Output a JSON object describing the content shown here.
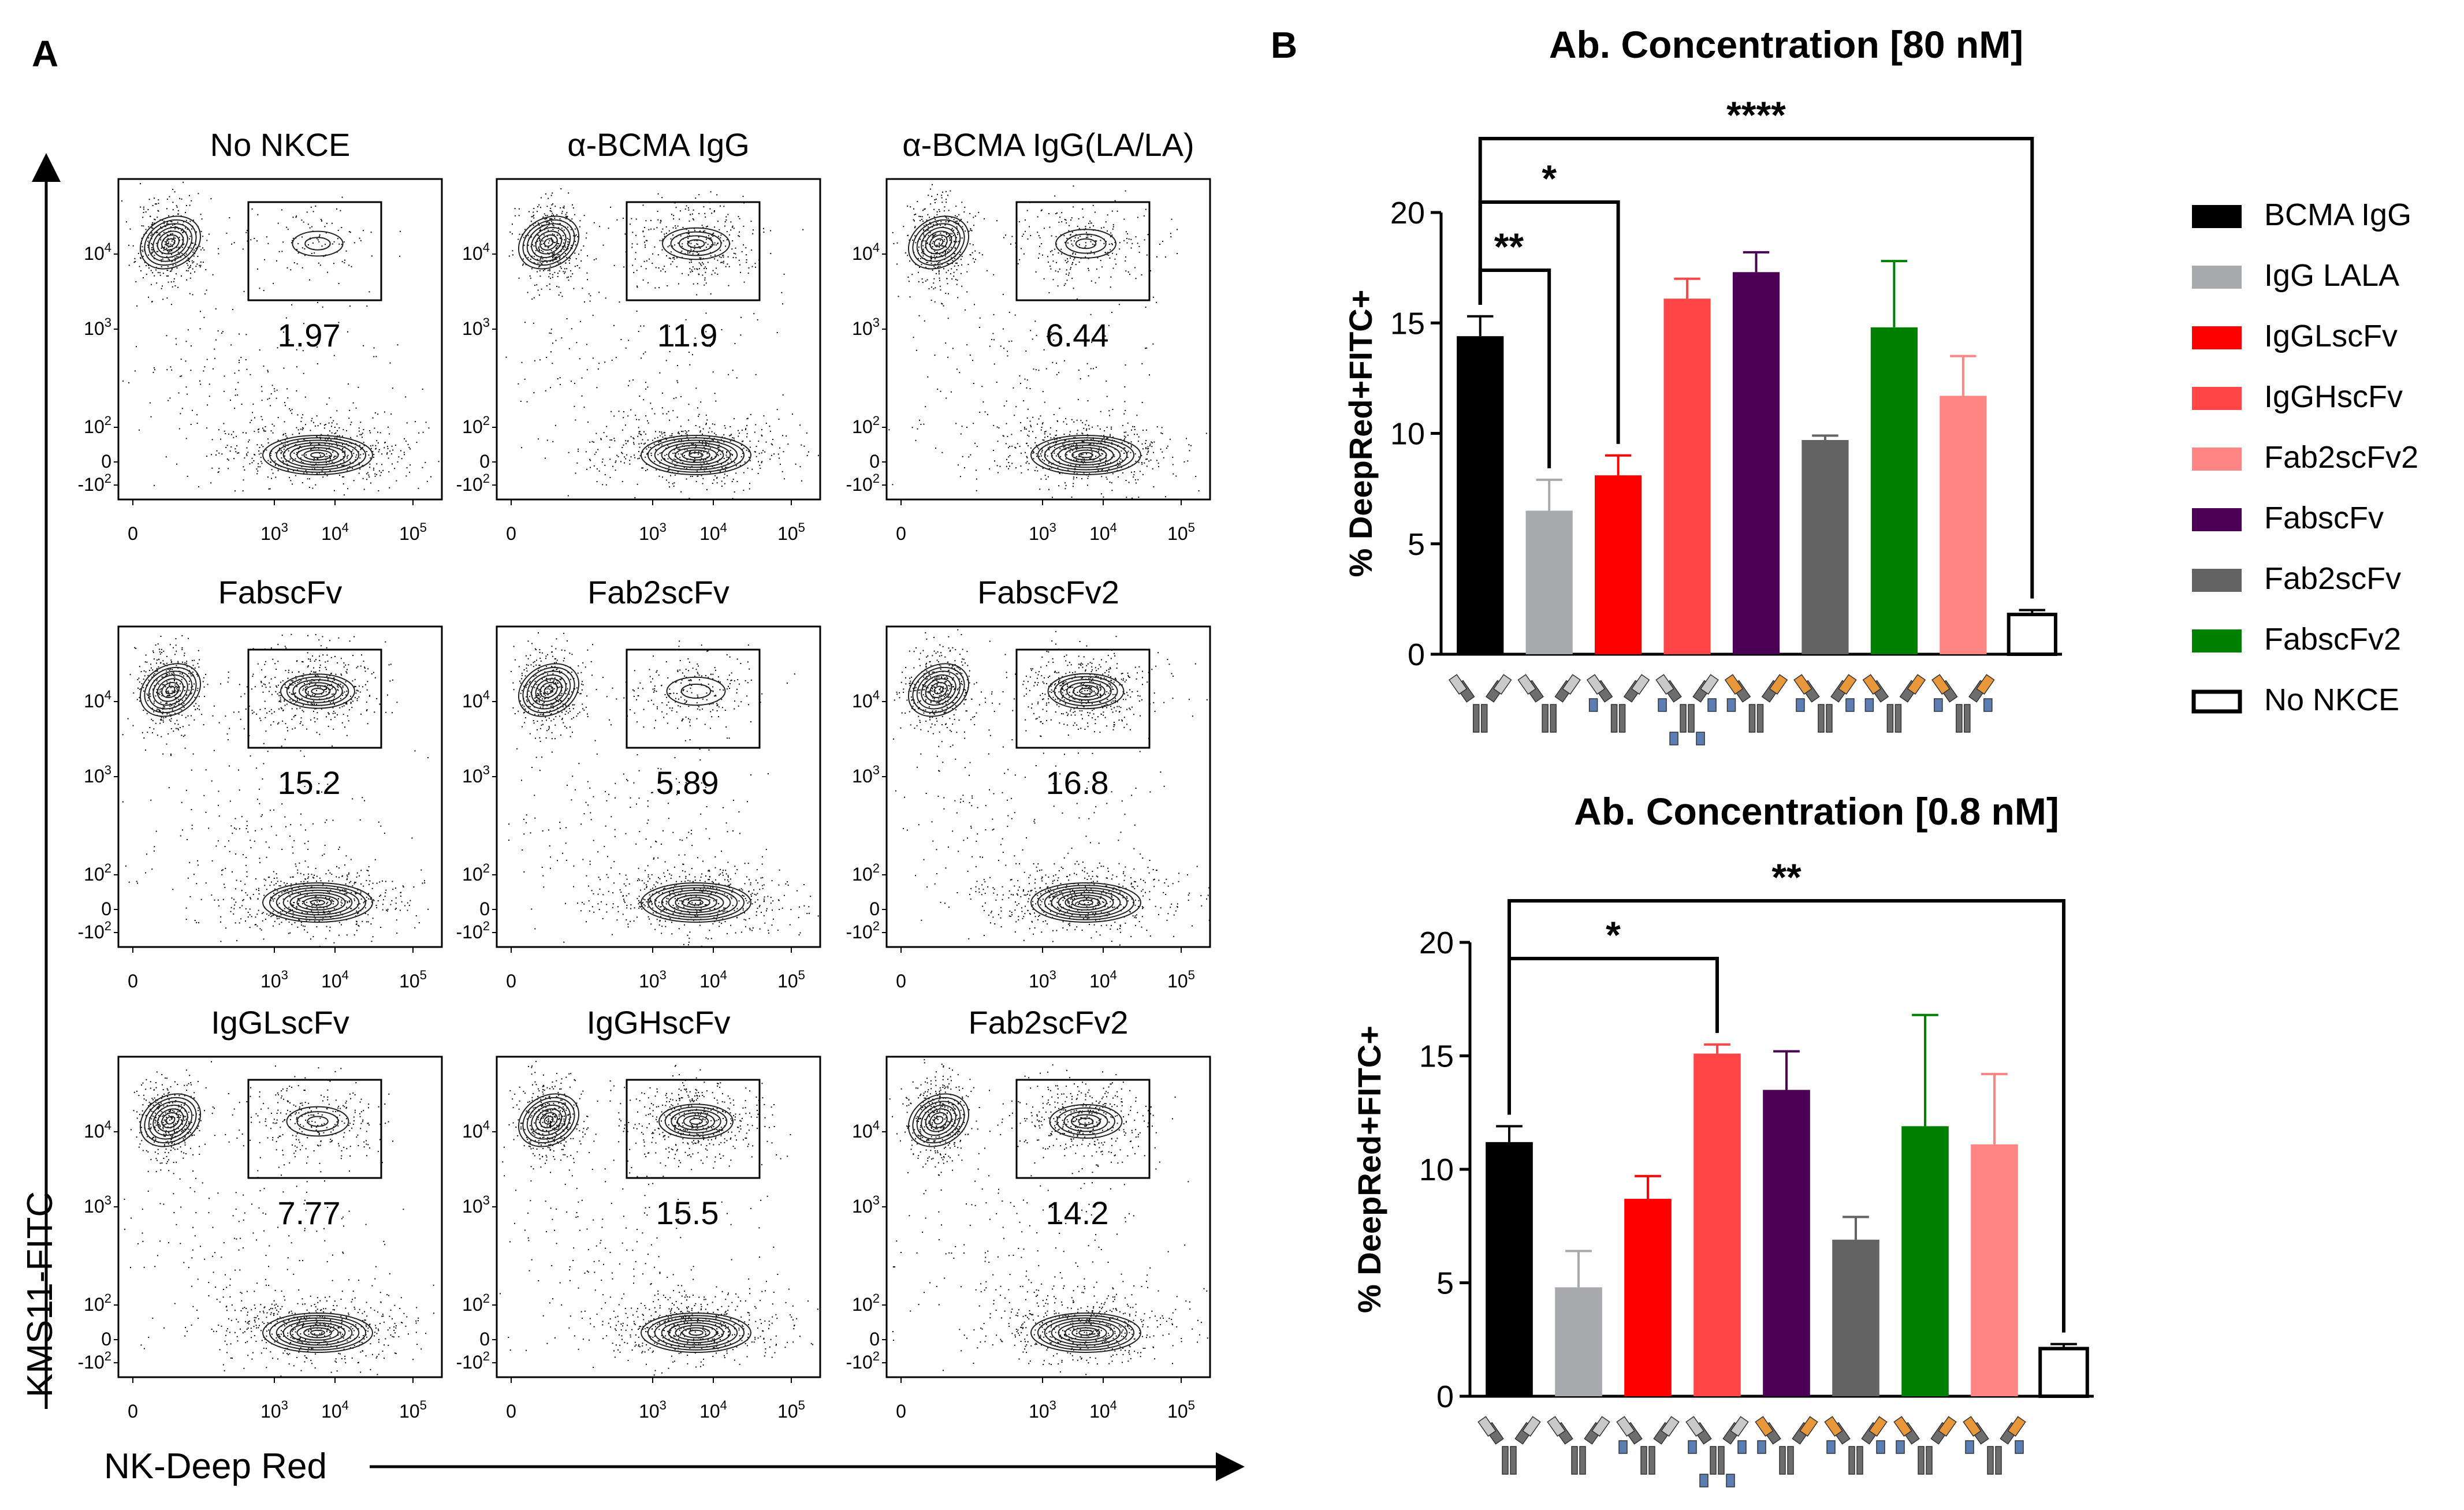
{
  "panel_a": {
    "letter": "A",
    "y_axis_label": "KMS11-FITC",
    "x_axis_label": "NK-Deep Red",
    "y_ticks": [
      {
        "base": "10",
        "exp": "4"
      },
      {
        "base": "10",
        "exp": "3"
      },
      {
        "base": "10",
        "exp": "2"
      },
      {
        "base": "0",
        "exp": ""
      },
      {
        "base": "-10",
        "exp": "2"
      }
    ],
    "x_ticks": [
      {
        "base": "0",
        "exp": ""
      },
      {
        "base": "10",
        "exp": "3"
      },
      {
        "base": "10",
        "exp": "4"
      },
      {
        "base": "10",
        "exp": "5"
      }
    ],
    "plots": [
      {
        "title": "No NKCE",
        "gate_value": "1.97",
        "gated_fraction": 0.12
      },
      {
        "title": "α-BCMA IgG",
        "gate_value": "11.9",
        "gated_fraction": 0.6
      },
      {
        "title": "α-BCMA IgG(LA/LA)",
        "gate_value": "6.44",
        "gated_fraction": 0.4
      },
      {
        "title": "FabscFv",
        "gate_value": "15.2",
        "gated_fraction": 0.8
      },
      {
        "title": "Fab2scFv",
        "gate_value": "5.89",
        "gated_fraction": 0.35
      },
      {
        "title": "FabscFv2",
        "gate_value": "16.8",
        "gated_fraction": 0.85
      },
      {
        "title": "IgGLscFv",
        "gate_value": "7.77",
        "gated_fraction": 0.45
      },
      {
        "title": "IgGHscFv",
        "gate_value": "15.5",
        "gated_fraction": 0.8
      },
      {
        "title": "Fab2scFv2",
        "gate_value": "14.2",
        "gated_fraction": 0.75
      }
    ]
  },
  "panel_b": {
    "letter": "B"
  },
  "chart_data": [
    {
      "type": "bar",
      "title": "Ab. Concentration [80 nM]",
      "ylabel": "% DeepRed+FITC+",
      "ylim": [
        0,
        20
      ],
      "yticks": [
        0,
        5,
        10,
        15,
        20
      ],
      "categories": [
        "BCMA IgG",
        "IgG LALA",
        "IgGLscFv",
        "IgGHscFv",
        "FabscFv",
        "Fab2scFv",
        "FabscFv2",
        "Fab2scFv2",
        "No NKCE"
      ],
      "values": [
        14.4,
        6.5,
        8.1,
        16.1,
        17.3,
        9.7,
        14.8,
        11.7,
        1.8
      ],
      "errors": [
        0.9,
        1.4,
        0.9,
        0.9,
        0.9,
        0.2,
        3.0,
        1.8,
        0.2
      ],
      "colors": [
        "#000000",
        "#a7a9ac",
        "#ff0000",
        "#ff4545",
        "#4b0055",
        "#636363",
        "#008000",
        "#ff8585",
        "#ffffff"
      ],
      "significance": [
        {
          "from": 0,
          "to": 1,
          "label": "**"
        },
        {
          "from": 0,
          "to": 2,
          "label": "*"
        },
        {
          "from": 0,
          "to": 8,
          "label": "****"
        }
      ]
    },
    {
      "type": "bar",
      "title": "Ab. Concentration [0.8 nM]",
      "ylabel": "% DeepRed+FITC+",
      "ylim": [
        0,
        20
      ],
      "yticks": [
        0,
        5,
        10,
        15,
        20
      ],
      "categories": [
        "BCMA IgG",
        "IgG LALA",
        "IgGLscFv",
        "IgGHscFv",
        "FabscFv",
        "Fab2scFv",
        "FabscFv2",
        "Fab2scFv2",
        "No NKCE"
      ],
      "values": [
        11.2,
        4.8,
        8.7,
        15.1,
        13.5,
        6.9,
        11.9,
        11.1,
        2.1
      ],
      "errors": [
        0.7,
        1.6,
        1.0,
        0.4,
        1.7,
        1.0,
        4.9,
        3.1,
        0.2
      ],
      "colors": [
        "#000000",
        "#a7a9ac",
        "#ff0000",
        "#ff4545",
        "#4b0055",
        "#636363",
        "#008000",
        "#ff8585",
        "#ffffff"
      ],
      "significance": [
        {
          "from": 0,
          "to": 3,
          "label": "*"
        },
        {
          "from": 0,
          "to": 8,
          "label": "**"
        }
      ]
    }
  ],
  "legend": {
    "items": [
      {
        "label": "BCMA IgG",
        "color": "#000000"
      },
      {
        "label": "IgG LALA",
        "color": "#a7a9ac"
      },
      {
        "label": "IgGLscFv",
        "color": "#ff0000"
      },
      {
        "label": "IgGHscFv",
        "color": "#ff4545"
      },
      {
        "label": "Fab2scFv2",
        "color": "#ff8585"
      },
      {
        "label": "FabscFv",
        "color": "#4b0055"
      },
      {
        "label": "Fab2scFv",
        "color": "#636363"
      },
      {
        "label": "FabscFv2",
        "color": "#008000"
      },
      {
        "label": "No NKCE",
        "color": "#ffffff"
      }
    ]
  },
  "antibody_icons": {
    "colors": {
      "heavy": "#6d6d6d",
      "light": "#c9c9c9",
      "scfv_blue": "#5b7db1",
      "scfv_orange": "#e8973a"
    },
    "designs": [
      "igg",
      "igg",
      "igg-lscfv",
      "igg-hscfv",
      "fab-scfv",
      "fab2-scfv",
      "fab-scfv2",
      "fab2-scfv2",
      "none"
    ]
  }
}
